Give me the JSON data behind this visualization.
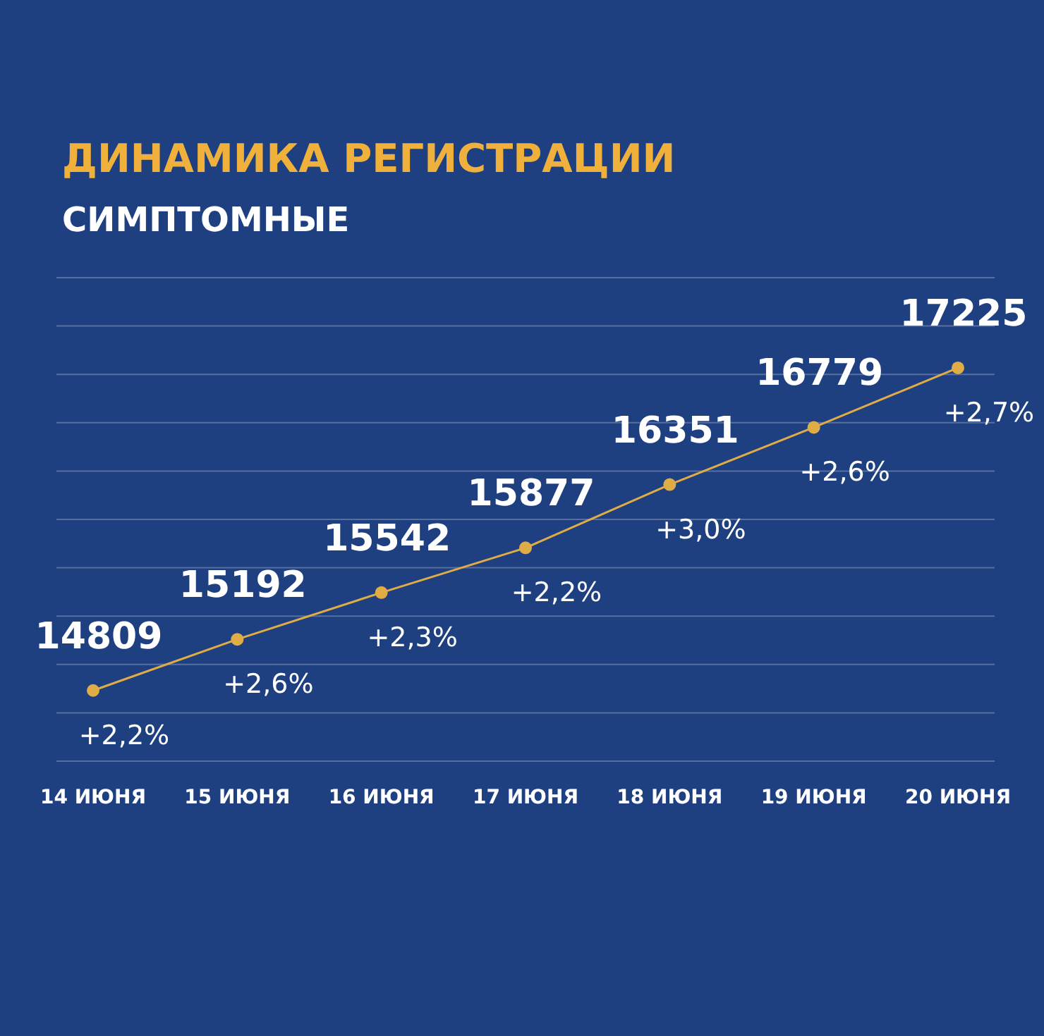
{
  "chart_data": {
    "type": "line",
    "title": "ДИНАМИКА РЕГИСТРАЦИИ",
    "subtitle": "СИМПТОМНЫЕ",
    "categories": [
      "14 ИЮНЯ",
      "15 ИЮНЯ",
      "16 ИЮНЯ",
      "17 ИЮНЯ",
      "18 ИЮНЯ",
      "19 ИЮНЯ",
      "20 ИЮНЯ"
    ],
    "series": [
      {
        "color": "#e0ac45",
        "values": [
          14809,
          15192,
          15542,
          15877,
          16351,
          16779,
          17225
        ]
      }
    ],
    "data_labels": true,
    "ylim": [
      14280,
      17900
    ],
    "yticks": [
      {
        "value": 14280,
        "label": null
      },
      {
        "value": 14642,
        "label": null
      },
      {
        "value": 15004,
        "label": null
      },
      {
        "value": 15366,
        "label": null
      },
      {
        "value": 15728,
        "label": null
      },
      {
        "value": 16090,
        "label": null
      },
      {
        "value": 16452,
        "label": null
      },
      {
        "value": 16814,
        "label": null
      },
      {
        "value": 17176,
        "label": null
      },
      {
        "value": 17538,
        "label": null
      },
      {
        "value": 17900,
        "label": null
      }
    ],
    "tick_labels": "x",
    "grid": "y",
    "marker": "circle",
    "line_style": "solid",
    "legend": false,
    "annotations": [
      {
        "text": "+2,2%",
        "x": "14 ИЮНЯ",
        "y": 14809
      },
      {
        "text": "+2,6%",
        "x": "15 ИЮНЯ",
        "y": 15192
      },
      {
        "text": "+2,3%",
        "x": "16 ИЮНЯ",
        "y": 15542
      },
      {
        "text": "+2,2%",
        "x": "17 ИЮНЯ",
        "y": 15877
      },
      {
        "text": "+3,0%",
        "x": "18 ИЮНЯ",
        "y": 16351
      },
      {
        "text": "+2,6%",
        "x": "19 ИЮНЯ",
        "y": 16779
      },
      {
        "text": "+2,7%",
        "x": "20 ИЮНЯ",
        "y": 17225
      }
    ]
  }
}
